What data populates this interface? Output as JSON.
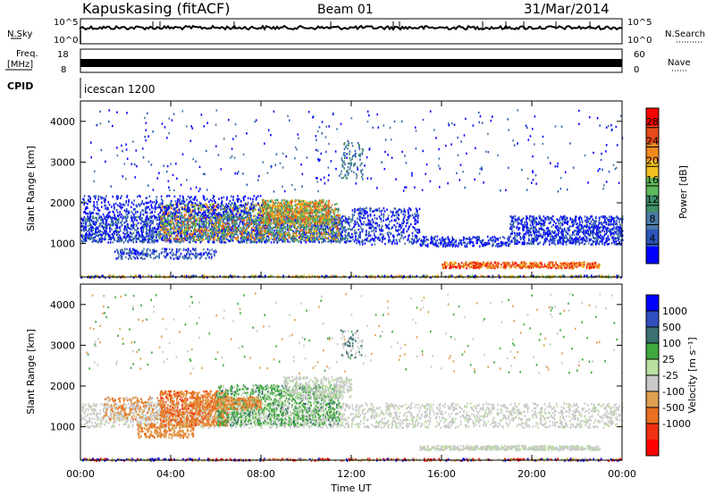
{
  "header": {
    "station": "Kapuskasing (fitACF)",
    "beam": "Beam 01",
    "date": "31/Mar/2014"
  },
  "status_panels": {
    "nsky_label": "N.Sky",
    "nsearch_label": "N.Search",
    "noise_ticks": [
      "10^5",
      "10^0"
    ],
    "freq_label_line1": "Freq.",
    "freq_label_line2": "[MHz]",
    "freq_ticks": [
      "18",
      "8"
    ],
    "nave_label": "Nave",
    "nave_ticks": [
      "60",
      "0"
    ],
    "cpid_label": "CPID",
    "cpid_value": "icescan 1200"
  },
  "colors": {
    "power_scale": [
      "#0000ff",
      "#2b56b8",
      "#4c7aa8",
      "#3f8f6a",
      "#5fb85a",
      "#f0c020",
      "#f08a20",
      "#e84a1a",
      "#ff0000"
    ],
    "velocity_scale": [
      "#0000ff",
      "#3050c0",
      "#3a7070",
      "#3fa83f",
      "#b8e0a0",
      "#c8c8c8",
      "#e0a050",
      "#e87020",
      "#ee3010",
      "#ff0000"
    ]
  },
  "chart_data": [
    {
      "type": "heatmap",
      "name": "power",
      "ylabel": "Slant Range [km]",
      "xlabel": "",
      "ylim": [
        180,
        4500
      ],
      "xlim": [
        0,
        24
      ],
      "yticks": [
        1000,
        2000,
        3000,
        4000
      ],
      "colorbar": {
        "label": "Power [dB]",
        "range": [
          0,
          32
        ],
        "ticks": [
          4,
          8,
          12,
          16,
          20,
          24,
          28
        ]
      }
    },
    {
      "type": "heatmap",
      "name": "velocity",
      "ylabel": "Slant Range [km]",
      "xlabel": "Time UT",
      "ylim": [
        180,
        4500
      ],
      "xlim": [
        0,
        24
      ],
      "yticks": [
        1000,
        2000,
        3000,
        4000
      ],
      "xticks": [
        "00:00",
        "04:00",
        "08:00",
        "12:00",
        "16:00",
        "20:00",
        "00:00"
      ],
      "colorbar": {
        "label": "Velocity [m s⁻¹]",
        "ticks": [
          1000,
          500,
          100,
          25,
          -25,
          -100,
          -500,
          -1000
        ]
      }
    }
  ]
}
